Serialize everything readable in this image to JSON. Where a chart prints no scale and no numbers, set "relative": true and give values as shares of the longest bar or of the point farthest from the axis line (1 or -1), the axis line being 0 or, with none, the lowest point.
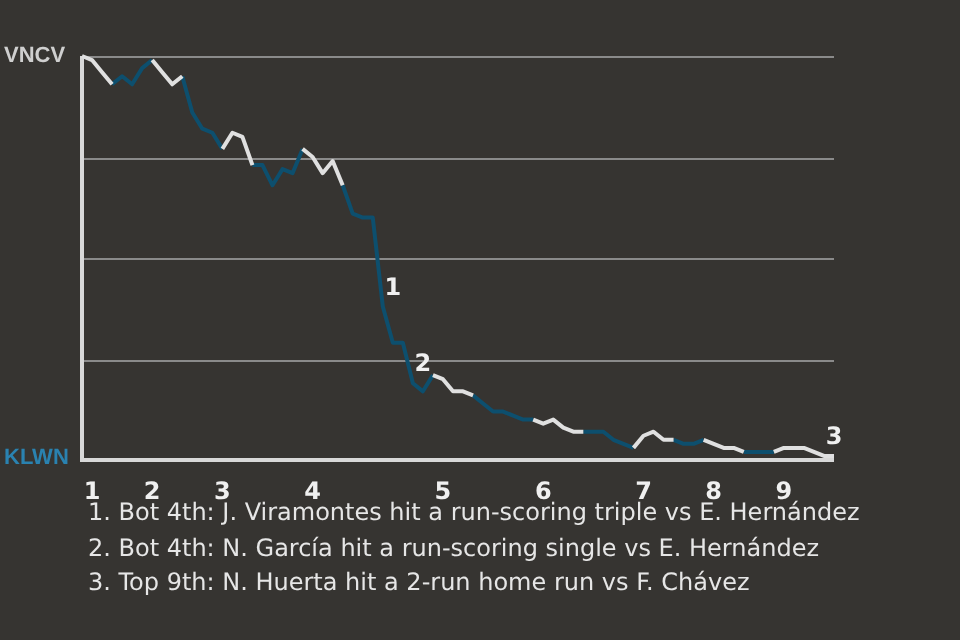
{
  "chart_data": {
    "type": "line",
    "relative": true,
    "categories": [
      null,
      "1",
      null,
      null,
      null,
      null,
      null,
      "2",
      null,
      null,
      null,
      null,
      null,
      null,
      "3",
      null,
      null,
      null,
      null,
      null,
      null,
      null,
      null,
      "4",
      null,
      null,
      null,
      null,
      null,
      null,
      null,
      null,
      null,
      null,
      null,
      null,
      "5",
      null,
      null,
      null,
      null,
      null,
      null,
      null,
      null,
      null,
      "6",
      null,
      null,
      null,
      null,
      null,
      null,
      null,
      null,
      null,
      "7",
      null,
      null,
      null,
      null,
      null,
      null,
      "8",
      null,
      null,
      null,
      null,
      null,
      null,
      "9",
      null,
      null,
      null,
      null,
      null
    ],
    "series": [
      {
        "color": "#e0e0e0",
        "values": [
          1,
          0.99,
          0.96,
          0.93,
          null,
          null,
          null,
          0.99,
          0.96,
          0.93,
          0.95,
          null,
          null,
          null,
          0.77,
          0.81,
          0.8,
          0.73,
          null,
          null,
          null,
          null,
          0.77,
          0.75,
          0.71,
          0.74,
          0.68,
          null,
          null,
          null,
          null,
          null,
          null,
          null,
          null,
          0.21,
          0.2,
          0.17,
          0.17,
          0.16,
          null,
          null,
          null,
          null,
          null,
          0.1,
          0.09,
          0.1,
          0.08,
          0.07,
          0.07,
          null,
          null,
          null,
          null,
          0.03,
          0.06,
          0.07,
          0.05,
          0.05,
          null,
          null,
          0.05,
          0.04,
          0.03,
          0.03,
          0.02,
          null,
          null,
          0.02,
          0.03,
          0.03,
          0.03,
          0.02,
          0.01,
          0.01
        ]
      },
      {
        "color": "#0d4f6e",
        "values": [
          null,
          null,
          null,
          0.93,
          0.95,
          0.93,
          0.97,
          0.99,
          null,
          null,
          0.95,
          0.86,
          0.82,
          0.81,
          0.77,
          null,
          null,
          0.73,
          0.73,
          0.68,
          0.72,
          0.71,
          0.77,
          null,
          null,
          null,
          0.68,
          0.61,
          0.6,
          0.6,
          0.38,
          0.29,
          0.29,
          0.19,
          0.17,
          0.21,
          null,
          null,
          null,
          0.16,
          0.14,
          0.12,
          0.12,
          0.11,
          0.1,
          0.1,
          null,
          null,
          null,
          null,
          0.07,
          0.07,
          0.07,
          0.05,
          0.04,
          0.03,
          null,
          null,
          null,
          0.05,
          0.04,
          0.04,
          0.05,
          null,
          null,
          null,
          0.02,
          0.02,
          0.02,
          0.02,
          null,
          null,
          null,
          null,
          null,
          null
        ]
      }
    ],
    "grid": "y",
    "legend": false,
    "marker": "none",
    "line_style": "solid",
    "annotations": [
      "VNCV",
      "KLWN",
      {
        "text": "1",
        "y": 0.38
      },
      {
        "text": "2",
        "y": 0.19
      },
      {
        "text": "3",
        "y": 0.01
      },
      "1. Bot 4th: J. Viramontes hit a run-scoring triple vs E. Hernández",
      "2. Bot 4th: N. García hit a run-scoring single vs E. Hernández",
      "3. Top 9th: N. Huerta hit a 2-run home run vs F. Chávez"
    ]
  }
}
